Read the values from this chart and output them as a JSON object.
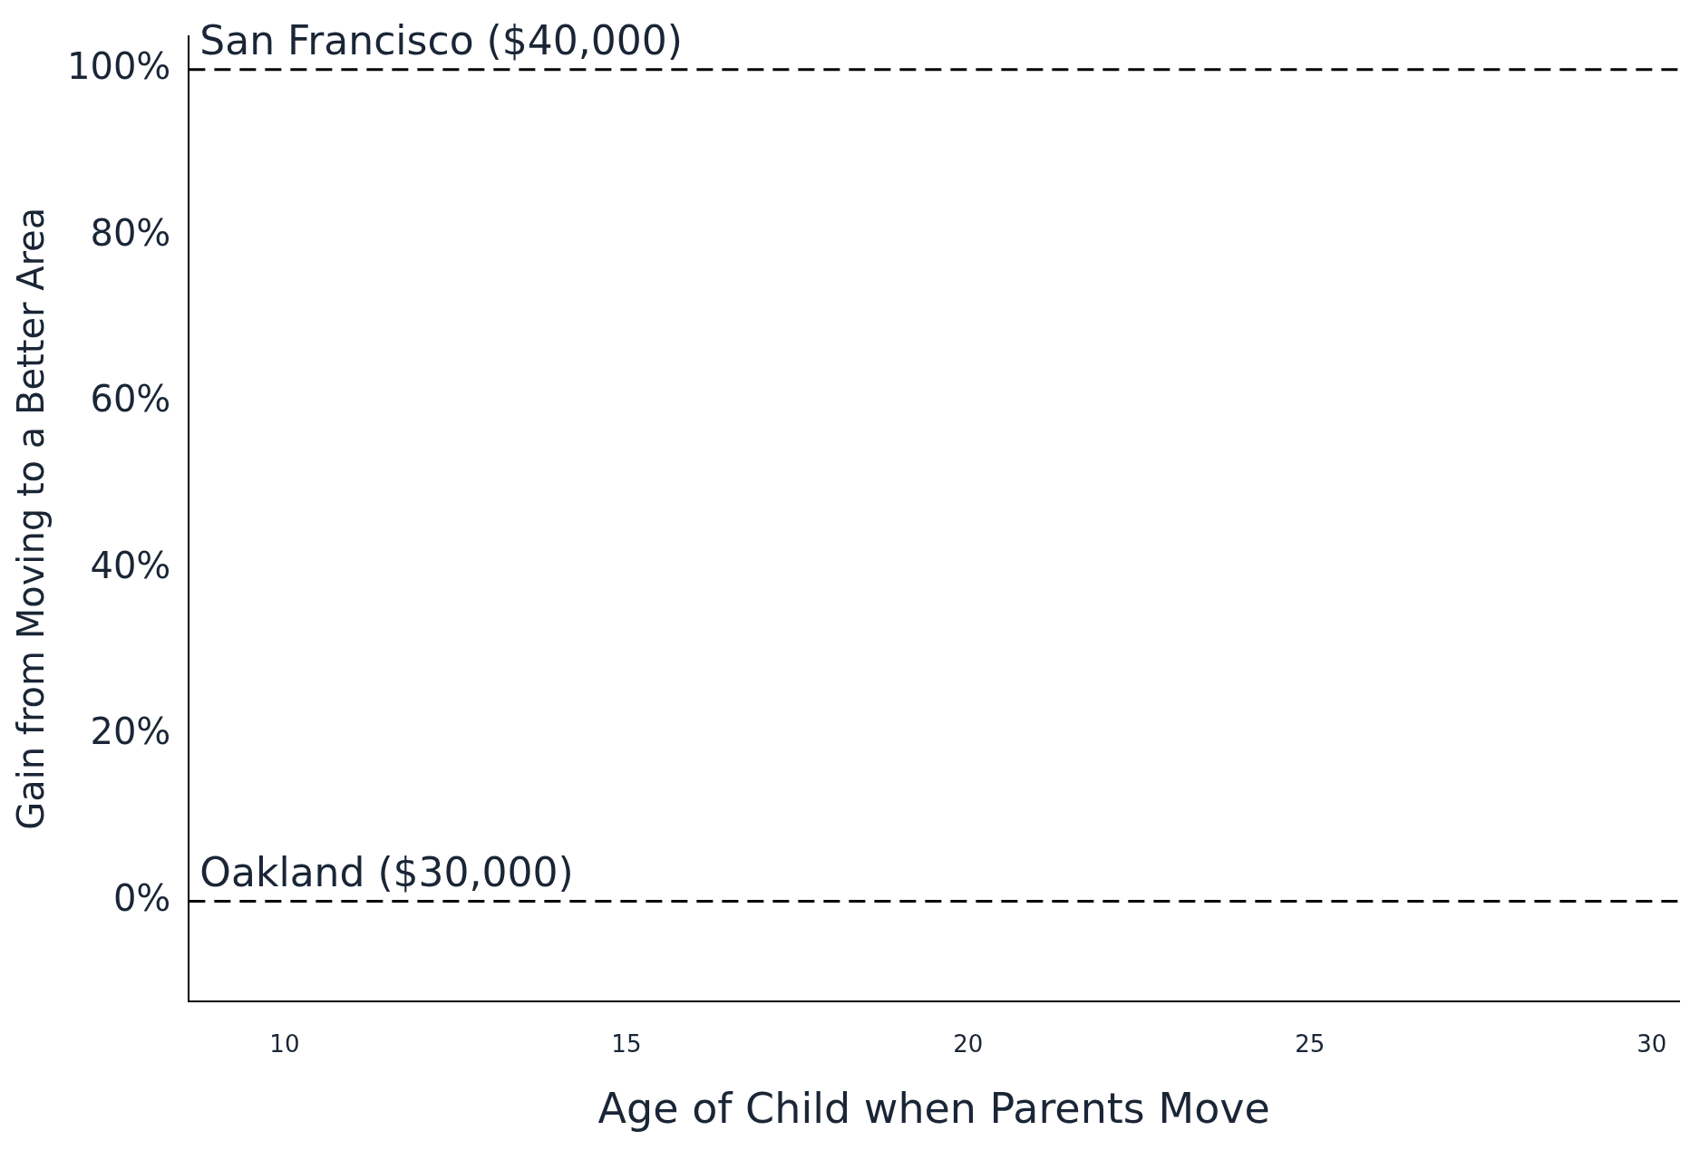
{
  "chart_data": {
    "type": "line",
    "xlabel": "Age of Child when Parents Move",
    "ylabel": "Gain from Moving to a Better Area",
    "xlim": [
      8.6,
      30.4
    ],
    "xticks": [
      10,
      15,
      20,
      25,
      30
    ],
    "ylim": [
      -12,
      104
    ],
    "yticks": [
      {
        "value": 0,
        "label": "0%"
      },
      {
        "value": 20,
        "label": "20%"
      },
      {
        "value": 40,
        "label": "40%"
      },
      {
        "value": 60,
        "label": "60%"
      },
      {
        "value": 80,
        "label": "80%"
      },
      {
        "value": 100,
        "label": "100%"
      }
    ],
    "ref_lines": [
      {
        "axis": "y",
        "value": 100,
        "label": "San Francisco ($40,000)",
        "color": "#000000",
        "line_style": "dashed"
      },
      {
        "axis": "y",
        "value": 0,
        "label": "Oakland ($30,000)",
        "color": "#000000",
        "line_style": "dashed"
      }
    ],
    "grid": false,
    "legend": false
  }
}
